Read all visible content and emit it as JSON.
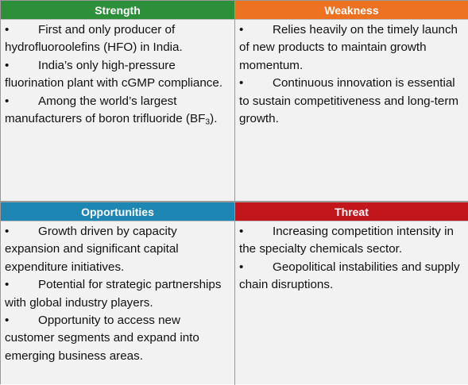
{
  "quadrants": {
    "strength": {
      "title": "Strength",
      "color": "#2e8f3a",
      "items": [
        "First and only producer of hydrofluoroolefins (HFO) in India.",
        "India’s only high-pressure fluorination plant with cGMP compliance.",
        "Among the world’s largest manufacturers of boron trifluoride (BF3)."
      ],
      "item3_main": "Among the world’s largest manufacturers of boron trifluoride (BF",
      "item3_sub": "3",
      "item3_end": ")."
    },
    "weakness": {
      "title": "Weakness",
      "color": "#ec7120",
      "items": [
        "Relies heavily on the timely launch of new products to maintain growth momentum.",
        "Continuous innovation is essential to sustain competitiveness and long-term growth."
      ]
    },
    "opportunities": {
      "title": "Opportunities",
      "color": "#1e86b2",
      "items": [
        "Growth driven by capacity expansion and significant capital expenditure initiatives.",
        "Potential for strategic partnerships with global industry players.",
        "Opportunity to access new customer segments and expand into emerging business areas."
      ]
    },
    "threat": {
      "title": "Threat",
      "color": "#c3151c",
      "items": [
        "Increasing competition intensity in the specialty chemicals sector.",
        "Geopolitical instabilities and supply chain disruptions."
      ]
    }
  },
  "bullet_char": "•"
}
